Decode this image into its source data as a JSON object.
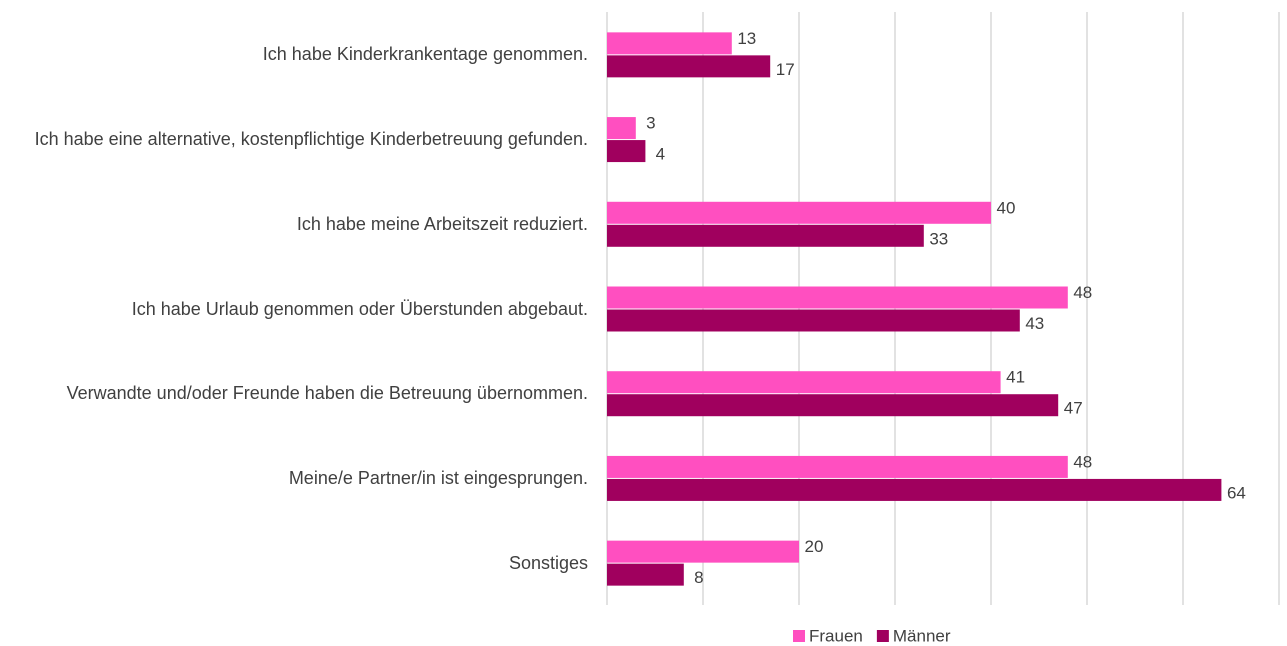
{
  "chart_data": {
    "type": "hbar",
    "categories": [
      "Ich habe Kinderkrankentage genommen.",
      "Ich habe eine alternative, kostenpflichtige Kinderbetreuung gefunden.",
      "Ich habe meine Arbeitszeit reduziert.",
      "Ich habe Urlaub genommen oder Überstunden abgebaut.",
      "Verwandte und/oder Freunde haben die Betreuung übernommen.",
      "Meine/e Partner/in ist eingesprungen.",
      "Sonstiges"
    ],
    "series": [
      {
        "name": "Frauen",
        "color": "#ff4fc0",
        "values": [
          13,
          3,
          40,
          48,
          41,
          48,
          20
        ]
      },
      {
        "name": "Männer",
        "color": "#a0005e",
        "values": [
          17,
          4,
          33,
          43,
          47,
          64,
          8
        ]
      }
    ],
    "xlim": [
      0,
      70
    ],
    "xticks": [
      0,
      10,
      20,
      30,
      40,
      50,
      60,
      70
    ],
    "grid": true,
    "legend": "bottom"
  }
}
